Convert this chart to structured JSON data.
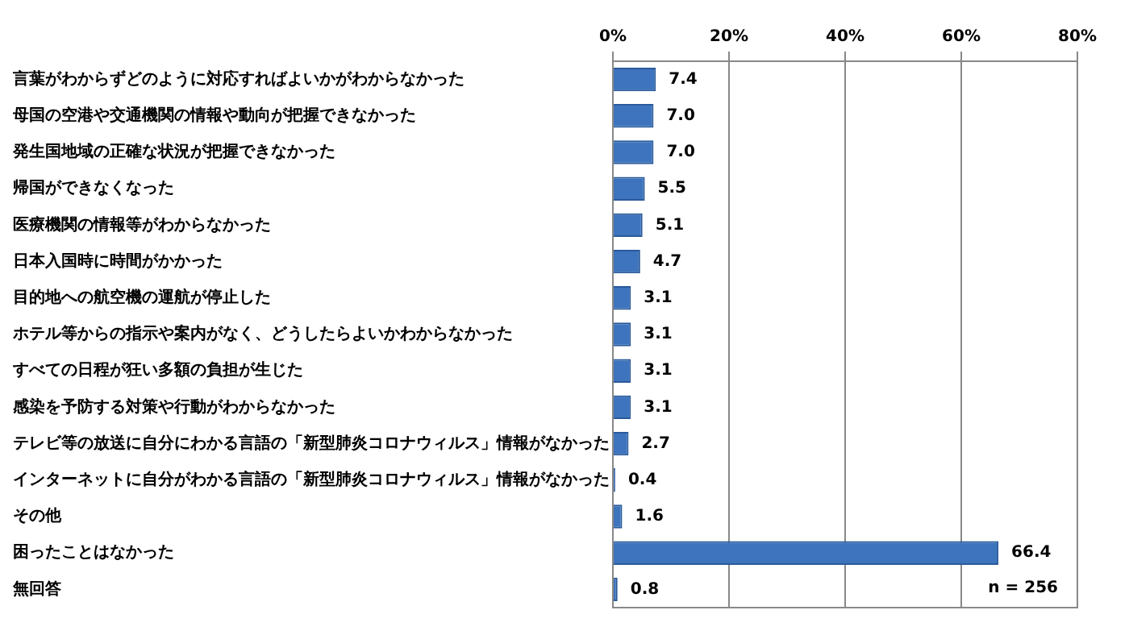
{
  "chart_data": {
    "type": "bar",
    "orientation": "horizontal",
    "categories": [
      "言葉がわからずどのように対応すればよいかがわからなかった",
      "母国の空港や交通機関の情報や動向が把握できなかった",
      "発生国地域の正確な状況が把握できなかった",
      "帰国ができなくなった",
      "医療機関の情報等がわからなかった",
      "日本入国時に時間がかかった",
      "目的地への航空機の運航が停止した",
      "ホテル等からの指示や案内がなく、どうしたらよいかわからなかった",
      "すべての日程が狂い多額の負担が生じた",
      "感染を予防する対策や行動がわからなかった",
      "テレビ等の放送に自分にわかる言語の「新型肺炎コロナウィルス」情報がなかった",
      "インターネットに自分がわかる言語の「新型肺炎コロナウィルス」情報がなかった",
      "その他",
      "困ったことはなかった",
      "無回答"
    ],
    "values": [
      7.4,
      7.0,
      7.0,
      5.5,
      5.1,
      4.7,
      3.1,
      3.1,
      3.1,
      3.1,
      2.7,
      0.4,
      1.6,
      66.4,
      0.8
    ],
    "color": "#3d74bd",
    "xlim": [
      0,
      80
    ],
    "xticks": [
      {
        "value": 0,
        "label": "0%"
      },
      {
        "value": 20,
        "label": "20%"
      },
      {
        "value": 40,
        "label": "40%"
      },
      {
        "value": 60,
        "label": "60%"
      },
      {
        "value": 80,
        "label": "80%"
      }
    ],
    "value_labels": [
      "7.4",
      "7.0",
      "7.0",
      "5.5",
      "5.1",
      "4.7",
      "3.1",
      "3.1",
      "3.1",
      "3.1",
      "2.7",
      "0.4",
      "1.6",
      "66.4",
      "0.8"
    ],
    "grid": "x",
    "legend": false,
    "annotations": [
      "n = 256"
    ]
  }
}
